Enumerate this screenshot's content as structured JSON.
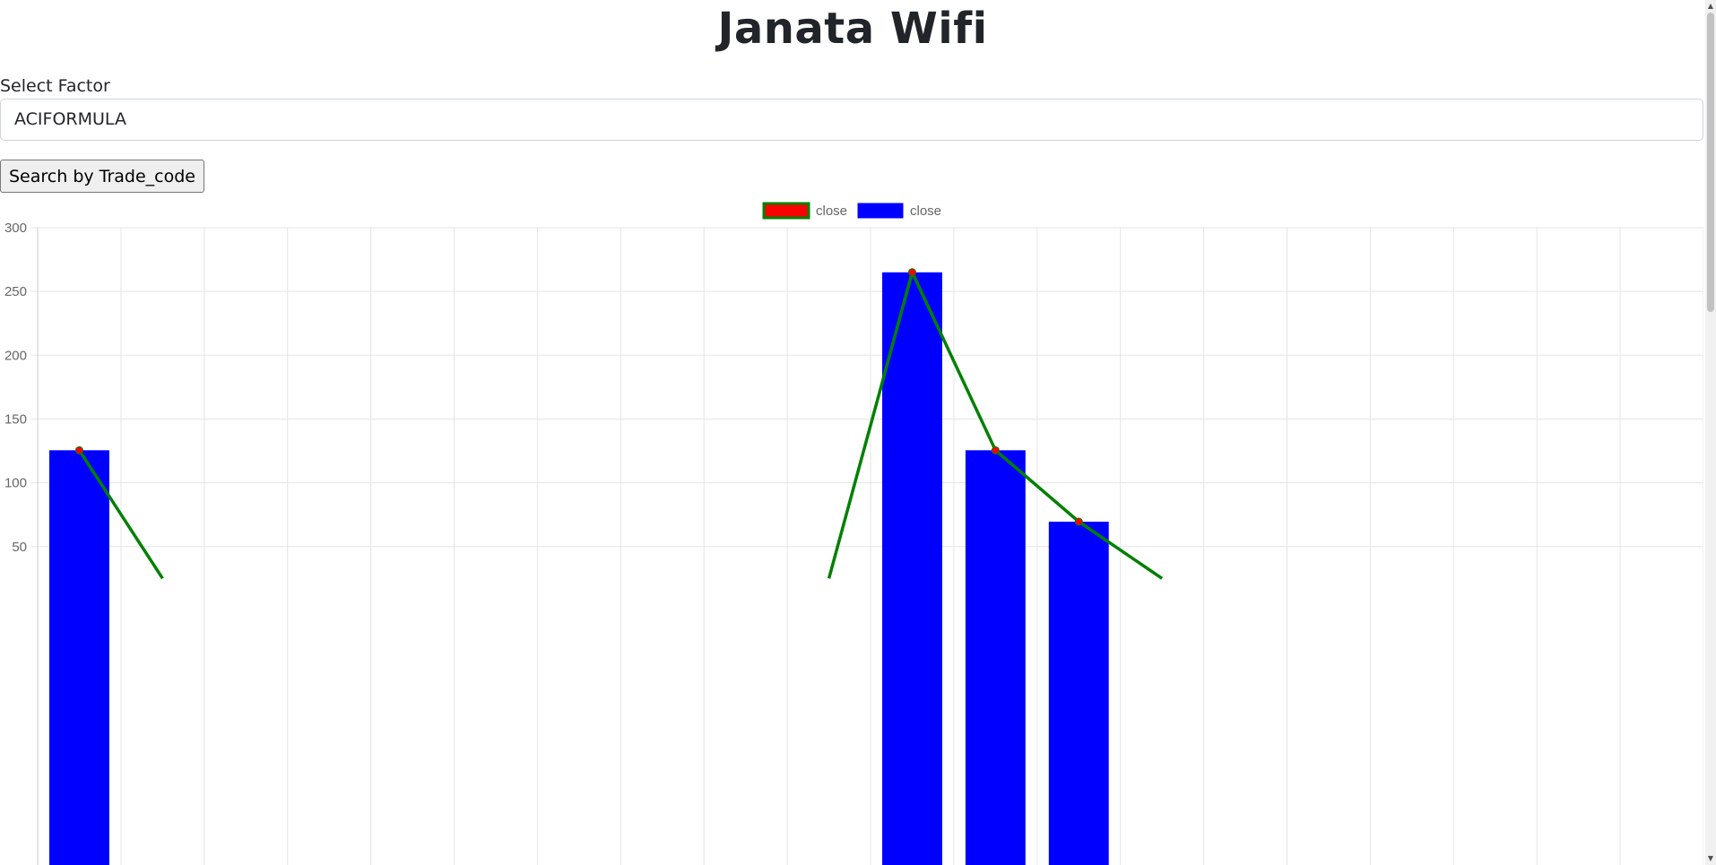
{
  "page": {
    "title": "Janata Wifi"
  },
  "form": {
    "select_label": "Select Factor",
    "selected_value": "ACIFORMULA",
    "search_button_label": "Search by Trade_code"
  },
  "colors": {
    "bar_fill": "#0000ff",
    "line_stroke": "#008000",
    "point_fill": "#ff0000",
    "grid": "#e5e5e5",
    "tick_text": "#666666"
  },
  "chart_data": {
    "type": "bar",
    "legend_position": "top-center",
    "legend": [
      {
        "label": "close",
        "fill": "#ff0000",
        "border": "#008000"
      },
      {
        "label": "close",
        "fill": "#0000ff",
        "border": "#0000ff"
      }
    ],
    "grid": true,
    "ylim": [
      50,
      300
    ],
    "yticks": [
      300,
      250,
      200,
      150,
      100,
      50
    ],
    "series": [
      {
        "type": "bar",
        "values": [
          125.5,
          null,
          null,
          null,
          null,
          null,
          null,
          null,
          null,
          null,
          265,
          125.5,
          69.5,
          null,
          null,
          null,
          null,
          null,
          null,
          null
        ]
      },
      {
        "type": "line",
        "values": [
          125.5,
          25,
          null,
          null,
          null,
          null,
          null,
          null,
          null,
          25,
          265,
          125.5,
          69.5,
          25,
          null,
          null,
          null,
          null,
          null,
          null
        ]
      }
    ]
  }
}
